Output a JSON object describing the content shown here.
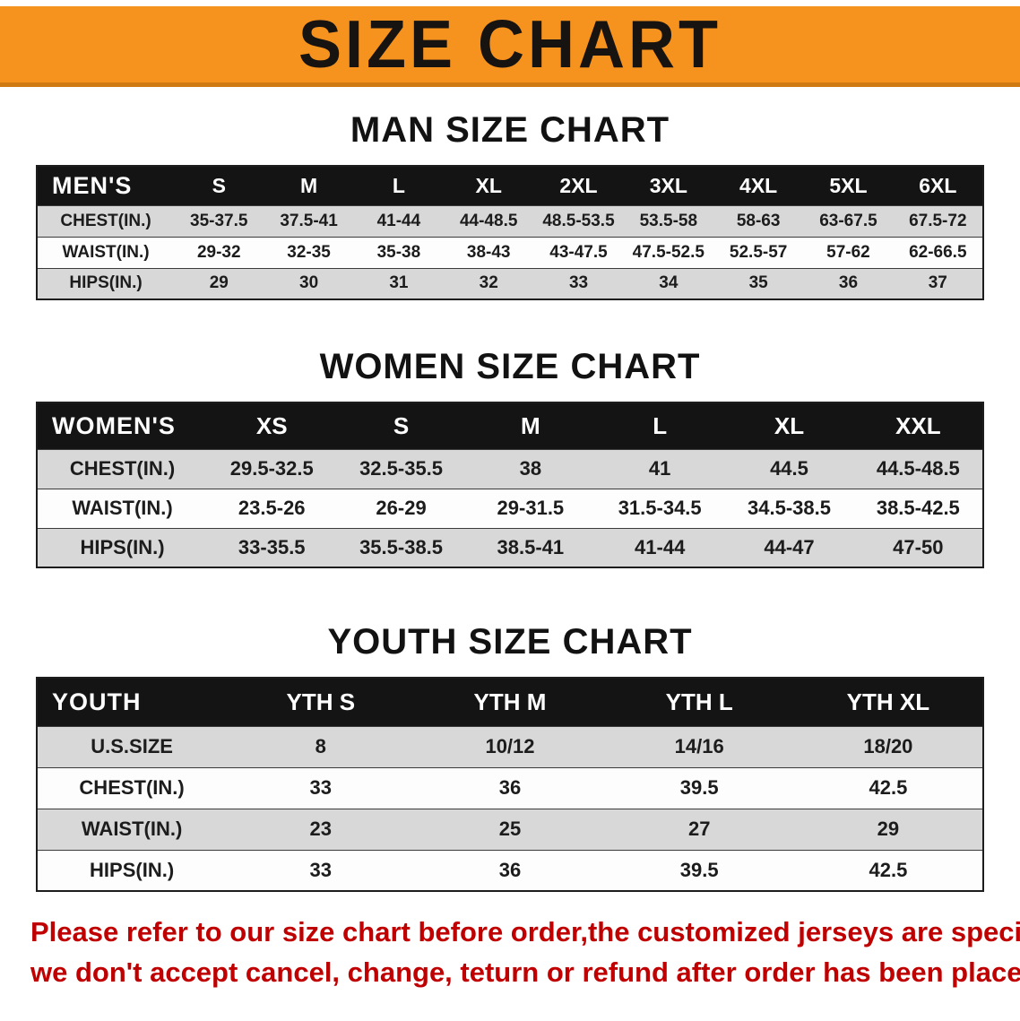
{
  "banner": {
    "title": "SIZE CHART"
  },
  "colors": {
    "banner-orange": "#F6921E",
    "banner-orange-dark": "#CE7911",
    "header-black": "#141414",
    "row-gray": "#D8D8D8",
    "disclaimer-red": "#C00000"
  },
  "sections": [
    {
      "heading": "MAN SIZE CHART",
      "table": {
        "header": [
          "MEN'S",
          "S",
          "M",
          "L",
          "XL",
          "2XL",
          "3XL",
          "4XL",
          "5XL",
          "6XL"
        ],
        "rows": [
          [
            "CHEST(IN.)",
            "35-37.5",
            "37.5-41",
            "41-44",
            "44-48.5",
            "48.5-53.5",
            "53.5-58",
            "58-63",
            "63-67.5",
            "67.5-72"
          ],
          [
            "WAIST(IN.)",
            "29-32",
            "32-35",
            "35-38",
            "38-43",
            "43-47.5",
            "47.5-52.5",
            "52.5-57",
            "57-62",
            "62-66.5"
          ],
          [
            "HIPS(IN.)",
            "29",
            "30",
            "31",
            "32",
            "33",
            "34",
            "35",
            "36",
            "37"
          ]
        ]
      }
    },
    {
      "heading": "WOMEN SIZE CHART",
      "table": {
        "header": [
          "WOMEN'S",
          "XS",
          "S",
          "M",
          "L",
          "XL",
          "XXL"
        ],
        "rows": [
          [
            "CHEST(IN.)",
            "29.5-32.5",
            "32.5-35.5",
            "38",
            "41",
            "44.5",
            "44.5-48.5"
          ],
          [
            "WAIST(IN.)",
            "23.5-26",
            "26-29",
            "29-31.5",
            "31.5-34.5",
            "34.5-38.5",
            "38.5-42.5"
          ],
          [
            "HIPS(IN.)",
            "33-35.5",
            "35.5-38.5",
            "38.5-41",
            "41-44",
            "44-47",
            "47-50"
          ]
        ]
      }
    },
    {
      "heading": "YOUTH SIZE CHART",
      "table": {
        "header": [
          "YOUTH",
          "YTH S",
          "YTH M",
          "YTH L",
          "YTH XL"
        ],
        "rows": [
          [
            "U.S.SIZE",
            "8",
            "10/12",
            "14/16",
            "18/20"
          ],
          [
            "CHEST(IN.)",
            "33",
            "36",
            "39.5",
            "42.5"
          ],
          [
            "WAIST(IN.)",
            "23",
            "25",
            "27",
            "29"
          ],
          [
            "HIPS(IN.)",
            "33",
            "36",
            "39.5",
            "42.5"
          ]
        ]
      }
    }
  ],
  "disclaimer": {
    "line1": "Please refer to our size chart before order,the customized jerseys are special products,",
    "line2": "we don't accept cancel, change, teturn or refund after order has been placed!"
  }
}
